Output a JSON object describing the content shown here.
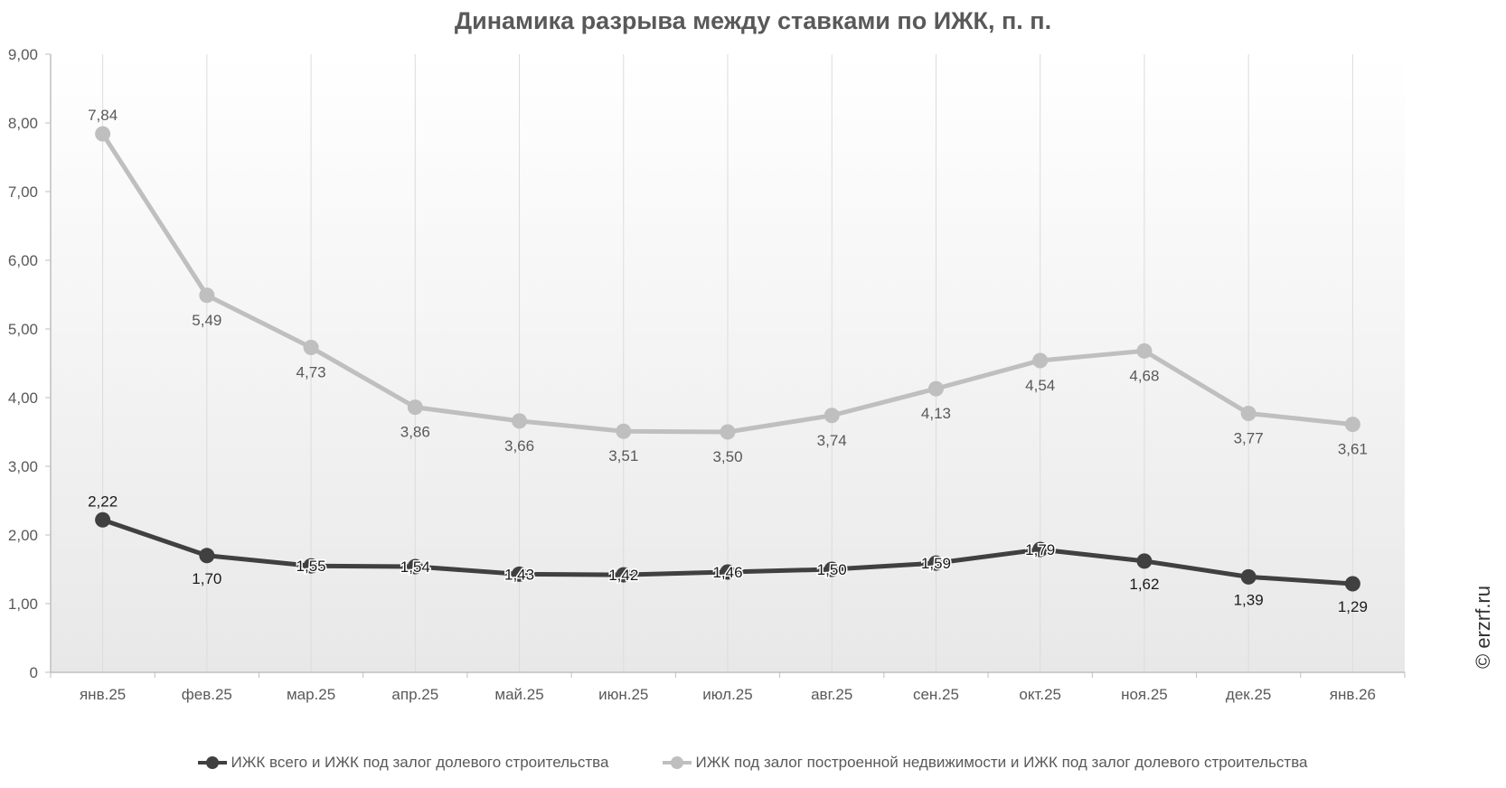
{
  "chart_data": {
    "type": "line",
    "title": "Динамика разрыва между ставками по ИЖК, п. п.",
    "categories": [
      "янв.25",
      "фев.25",
      "мар.25",
      "апр.25",
      "май.25",
      "июн.25",
      "июл.25",
      "авг.25",
      "сен.25",
      "окт.25",
      "ноя.25",
      "дек.25",
      "янв.26"
    ],
    "ylim": [
      0,
      9
    ],
    "yticks": [
      0,
      1,
      2,
      3,
      4,
      5,
      6,
      7,
      8,
      9
    ],
    "ytick_labels": [
      "0",
      "1,00",
      "2,00",
      "3,00",
      "4,00",
      "5,00",
      "6,00",
      "7,00",
      "8,00",
      "9,00"
    ],
    "grid": "vertical",
    "legend_position": "bottom",
    "series": [
      {
        "name": "ИЖК всего  и  ИЖК под залог долевого строительства",
        "color": "#404040",
        "values": [
          2.22,
          1.7,
          1.55,
          1.54,
          1.43,
          1.42,
          1.46,
          1.5,
          1.59,
          1.79,
          1.62,
          1.39,
          1.29
        ],
        "labels": [
          "2,22",
          "1,70",
          "1,55",
          "1,54",
          "1,43",
          "1,42",
          "1,46",
          "1,50",
          "1,59",
          "1,79",
          "1,62",
          "1,39",
          "1,29"
        ]
      },
      {
        "name": "ИЖК под залог построенной недвижимости  и  ИЖК под залог долевого строительства",
        "color": "#bfbfbf",
        "values": [
          7.84,
          5.49,
          4.73,
          3.86,
          3.66,
          3.51,
          3.5,
          3.74,
          4.13,
          4.54,
          4.68,
          3.77,
          3.61
        ],
        "labels": [
          "7,84",
          "5,49",
          "4,73",
          "3,86",
          "3,66",
          "3,51",
          "3,50",
          "3,74",
          "4,13",
          "4,54",
          "4,68",
          "3,77",
          "3,61"
        ]
      }
    ]
  },
  "watermark": "© erzrf.ru"
}
